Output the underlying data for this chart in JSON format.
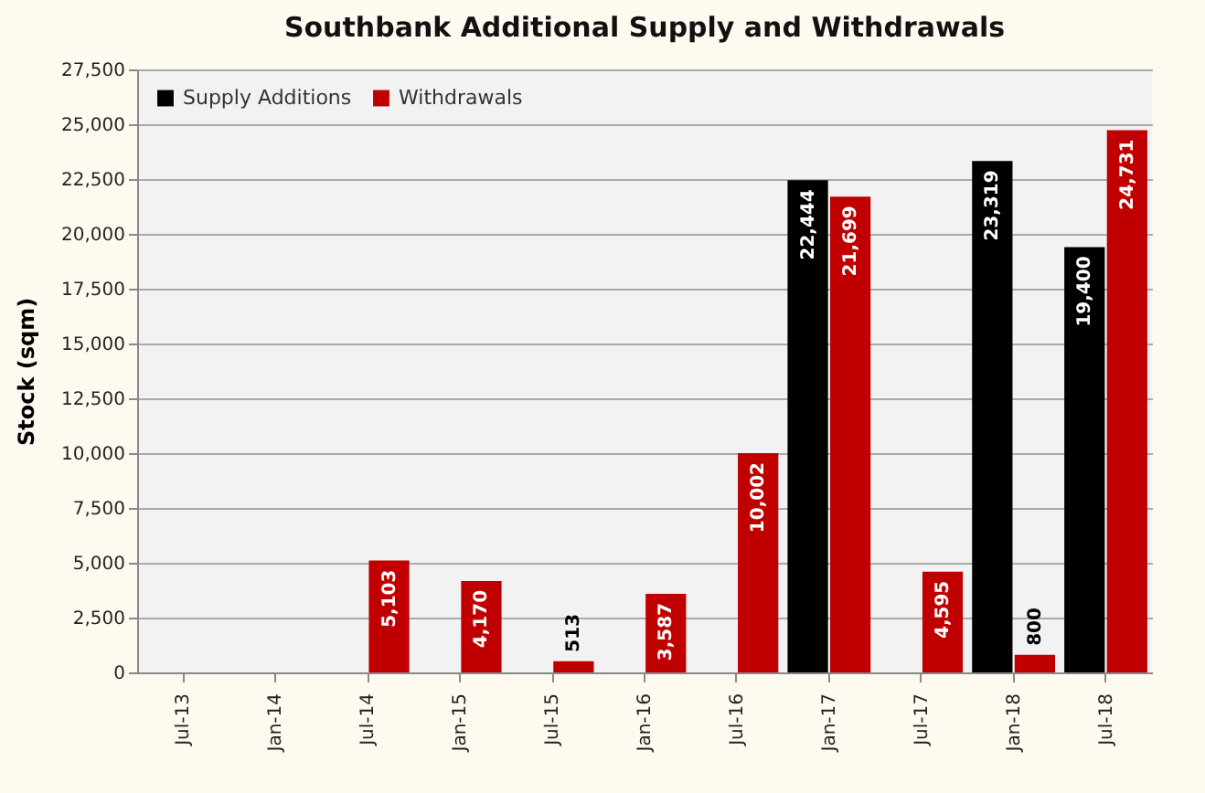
{
  "chart_data": {
    "type": "bar",
    "title": "Southbank Additional Supply and Withdrawals",
    "ylabel": "Stock (sqm)",
    "categories": [
      "Jul-13",
      "Jan-14",
      "Jul-14",
      "Jan-15",
      "Jul-15",
      "Jan-16",
      "Jul-16",
      "Jan-17",
      "Jul-17",
      "Jan-18",
      "Jul-18"
    ],
    "series": [
      {
        "name": "Supply Additions",
        "color": "#000000",
        "values": [
          null,
          null,
          null,
          null,
          null,
          null,
          null,
          22444,
          null,
          23319,
          19400
        ],
        "value_labels": [
          null,
          null,
          null,
          null,
          null,
          null,
          null,
          "22,444",
          null,
          "23,319",
          "19,400"
        ]
      },
      {
        "name": "Withdrawals",
        "color": "#c00000",
        "values": [
          null,
          null,
          5103,
          4170,
          513,
          3587,
          10002,
          21699,
          4595,
          800,
          24731
        ],
        "value_labels": [
          null,
          null,
          "5,103",
          "4,170",
          "513",
          "3,587",
          "10,002",
          "21,699",
          "4,595",
          "800",
          "24,731"
        ]
      }
    ],
    "ylim": [
      0,
      27500
    ],
    "yticks": [
      0,
      {
        "value": 2500,
        "label": "2,500"
      },
      {
        "value": 5000,
        "label": "5,000"
      },
      {
        "value": 7500,
        "label": "7,500"
      },
      {
        "value": 10000,
        "label": "10,000"
      },
      {
        "value": 12500,
        "label": "12,500"
      },
      {
        "value": 15000,
        "label": "15,000"
      },
      {
        "value": 17500,
        "label": "17,500"
      },
      {
        "value": 20000,
        "label": "20,000"
      },
      {
        "value": 22500,
        "label": "22,500"
      },
      {
        "value": 25000,
        "label": "25,000"
      },
      {
        "value": 27500,
        "label": "27,500"
      }
    ],
    "grid": "y",
    "legend": "top left"
  }
}
